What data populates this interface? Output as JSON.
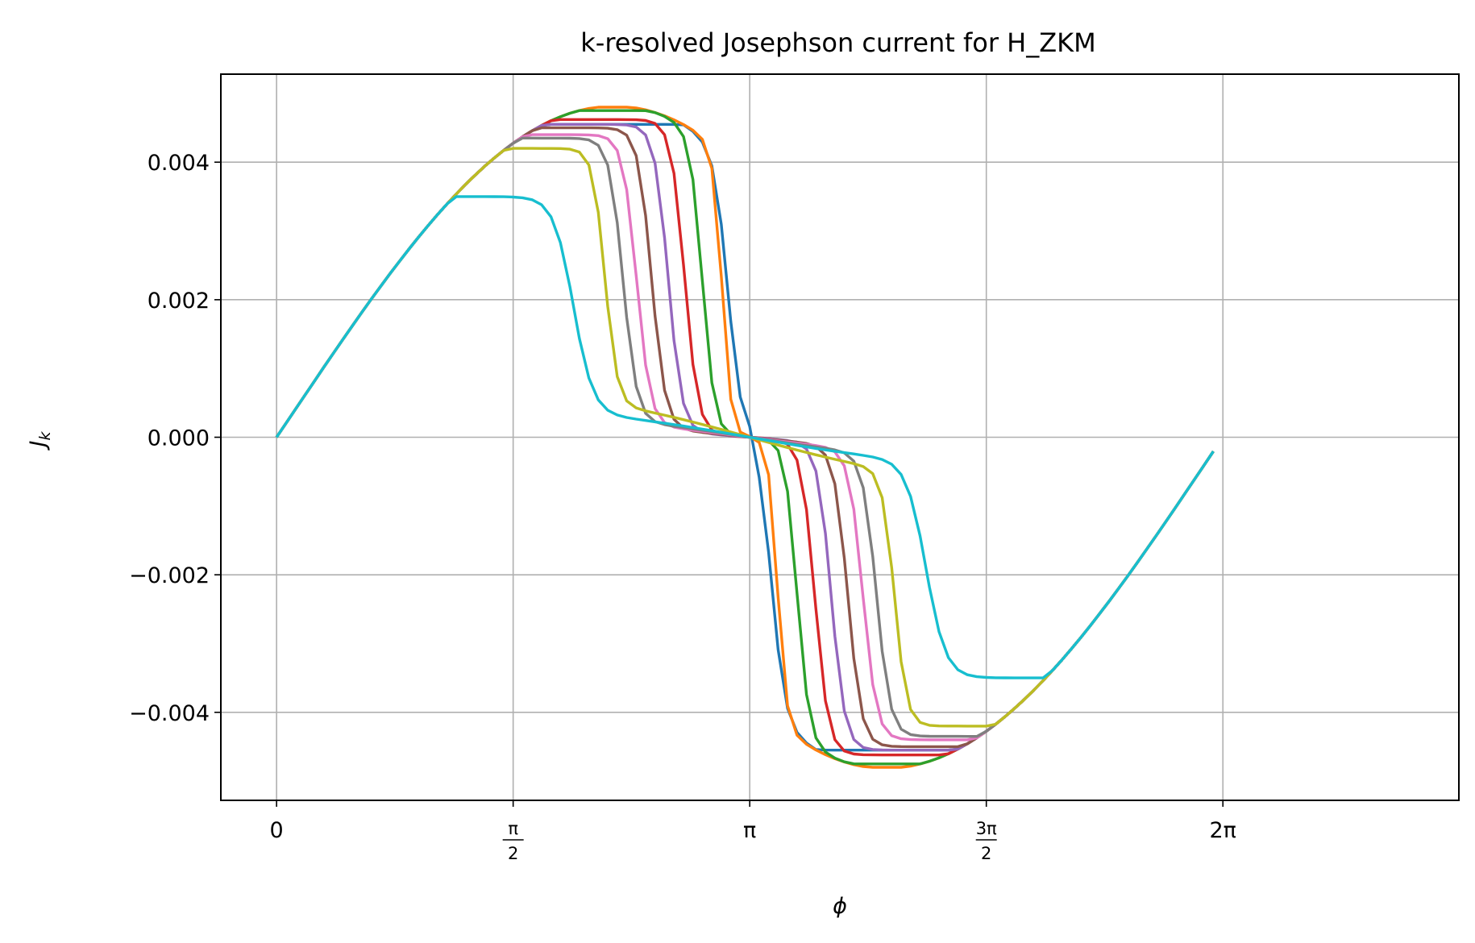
{
  "chart_data": {
    "type": "line",
    "title": "k-resolved Josephson current for H_ZKM",
    "xlabel": "ϕ",
    "ylabel": "J",
    "ylabel_sub": "k",
    "xlim": [
      -0.37,
      7.85
    ],
    "ylim": [
      -0.00528,
      0.00528
    ],
    "grid": true,
    "x_ticks": [
      {
        "value": 0,
        "label": "0"
      },
      {
        "value": 1.5708,
        "num": "π",
        "den": "2"
      },
      {
        "value": 3.1416,
        "label": "π"
      },
      {
        "value": 4.7124,
        "num": "3π",
        "den": "2"
      },
      {
        "value": 6.2832,
        "label": "2π"
      }
    ],
    "y_ticks": [
      {
        "value": 0.004,
        "label": "0.004"
      },
      {
        "value": 0.002,
        "label": "0.002"
      },
      {
        "value": 0.0,
        "label": "0.000"
      },
      {
        "value": -0.002,
        "label": "−0.002"
      },
      {
        "value": -0.004,
        "label": "−0.004"
      }
    ],
    "x_end": 6.22,
    "amplitude": 0.0045,
    "series": [
      {
        "color": "#1f77b4",
        "center": 3.0,
        "width": 0.045,
        "peak": 0.00455,
        "tail": 0.0
      },
      {
        "color": "#ff7f0e",
        "center": 2.96,
        "width": 0.03,
        "peak": 0.0048,
        "tail": 2e-05
      },
      {
        "color": "#2ca02c",
        "center": 2.83,
        "width": 0.04,
        "peak": 0.00475,
        "tail": 5e-05
      },
      {
        "color": "#d62728",
        "center": 2.71,
        "width": 0.045,
        "peak": 0.00462,
        "tail": 0.0001
      },
      {
        "color": "#9467bd",
        "center": 2.6,
        "width": 0.045,
        "peak": 0.00455,
        "tail": 0.00015
      },
      {
        "color": "#8c564b",
        "center": 2.49,
        "width": 0.045,
        "peak": 0.0045,
        "tail": 0.0002
      },
      {
        "color": "#e377c2",
        "center": 2.39,
        "width": 0.045,
        "peak": 0.0044,
        "tail": 0.00025
      },
      {
        "color": "#7f7f7f",
        "center": 2.3,
        "width": 0.045,
        "peak": 0.00435,
        "tail": 0.0003
      },
      {
        "color": "#bcbd22",
        "center": 2.18,
        "width": 0.04,
        "peak": 0.0042,
        "tail": 0.00055
      },
      {
        "color": "#17becf",
        "center": 1.97,
        "width": 0.065,
        "peak": 0.0035,
        "tail": 0.00035
      }
    ]
  }
}
